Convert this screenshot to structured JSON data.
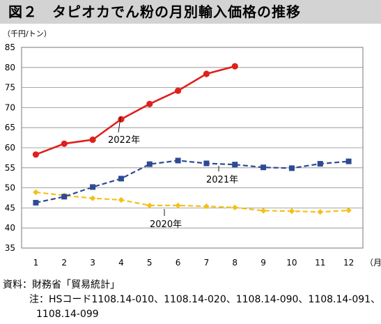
{
  "title": "図２　タピオカでん粉の月別輸入価格の推移",
  "unit_label": "（千円/トン）",
  "x_unit_label": "（月）",
  "notes": {
    "source": "資料：財務省「貿易統計」",
    "note_prefix": "注：",
    "note_line1": "HSコード1108.14-010、1108.14-020、1108.14-090、1108.14-091、",
    "note_line2": "1108.14-099"
  },
  "colors": {
    "y2022": "#e0201c",
    "y2021": "#2e4a94",
    "y2020": "#f5c016"
  },
  "chart_data": {
    "type": "line",
    "categories": [
      "1",
      "2",
      "3",
      "4",
      "5",
      "6",
      "7",
      "8",
      "9",
      "10",
      "11",
      "12"
    ],
    "ylim": [
      35,
      85
    ],
    "yticks": [
      35,
      40,
      45,
      50,
      55,
      60,
      65,
      70,
      75,
      80,
      85
    ],
    "grid": true,
    "series": [
      {
        "name": "2022年",
        "marker": "circle",
        "style": "solid",
        "values": [
          58.3,
          61.0,
          62.0,
          67.1,
          70.9,
          74.2,
          78.4,
          80.3,
          null,
          null,
          null,
          null
        ]
      },
      {
        "name": "2021年",
        "marker": "square",
        "style": "dashed",
        "values": [
          46.3,
          47.8,
          50.2,
          52.3,
          55.9,
          56.8,
          56.1,
          55.8,
          55.1,
          54.9,
          56.0,
          56.6
        ]
      },
      {
        "name": "2020年",
        "marker": "diamond",
        "style": "dashed",
        "values": [
          48.9,
          48.1,
          47.4,
          47.0,
          45.6,
          45.6,
          45.4,
          45.1,
          44.3,
          44.2,
          44.0,
          44.4
        ]
      }
    ]
  }
}
